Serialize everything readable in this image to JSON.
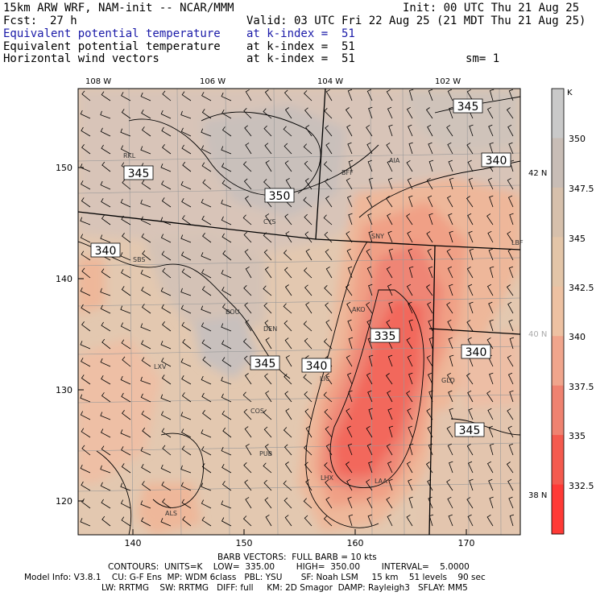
{
  "header": {
    "model": "15km ARW WRF, NAM-init -- NCAR/MMM",
    "init": "Init: 00 UTC Thu 21 Aug 25",
    "fcst_label": "Fcst:",
    "fcst_value": "27 h",
    "valid": "Valid: 03 UTC Fri 22 Aug 25 (21 MDT Thu 21 Aug 25)",
    "field1_name": "Equivalent potential temperature",
    "field1_level": "at k-index =  51",
    "field2_name": "Equivalent potential temperature",
    "field2_level": "at k-index =  51",
    "field3_name": "Horizontal wind vectors",
    "field3_level": "at k-index =  51",
    "smooth": "sm= 1"
  },
  "map": {
    "lon_labels": [
      "108 W",
      "106 W",
      "104 W",
      "102 W"
    ],
    "lat_labels": [
      "42 N",
      "40 N",
      "38 N"
    ],
    "y_ticks": [
      "150",
      "140",
      "130",
      "120"
    ],
    "x_ticks": [
      "140",
      "150",
      "160",
      "170"
    ],
    "contour_labels": [
      "345",
      "345",
      "350",
      "340",
      "340",
      "345",
      "340",
      "335",
      "340",
      "345"
    ],
    "cities": [
      "RKL",
      "BFF",
      "AIA",
      "CYS",
      "SNY",
      "LBF",
      "SBS",
      "BOU",
      "AKO",
      "DEN",
      "LXV",
      "LIC",
      "GLD",
      "COS",
      "PUB",
      "LHX",
      "LAA",
      "ALS"
    ]
  },
  "colorbar": {
    "unit": "K",
    "ticks": [
      "350",
      "347.5",
      "345",
      "342.5",
      "340",
      "337.5",
      "335",
      "332.5"
    ],
    "colors": [
      "#c9c9c9",
      "#c8bdb6",
      "#d6c0ac",
      "#e3c5a8",
      "#edc1a2",
      "#f0a58c",
      "#ef8270",
      "#f45a4e",
      "#ff3a36"
    ]
  },
  "footer": {
    "barb": "BARB VECTORS:  FULL BARB = 10 kts",
    "contours": "CONTOURS:  UNITS=K    LOW=  335.00        HIGH=  350.00        INTERVAL=    5.0000",
    "model_info": "Model Info: V3.8.1    CU: G-F Ens  MP: WDM 6class   PBL: YSU       SF: Noah LSM     15 km    51 levels    90 sec",
    "physics": "LW: RRTMG    SW: RRTMG   DIFF: full     KM: 2D Smagor  DAMP: Rayleigh3   SFLAY: MM5"
  }
}
